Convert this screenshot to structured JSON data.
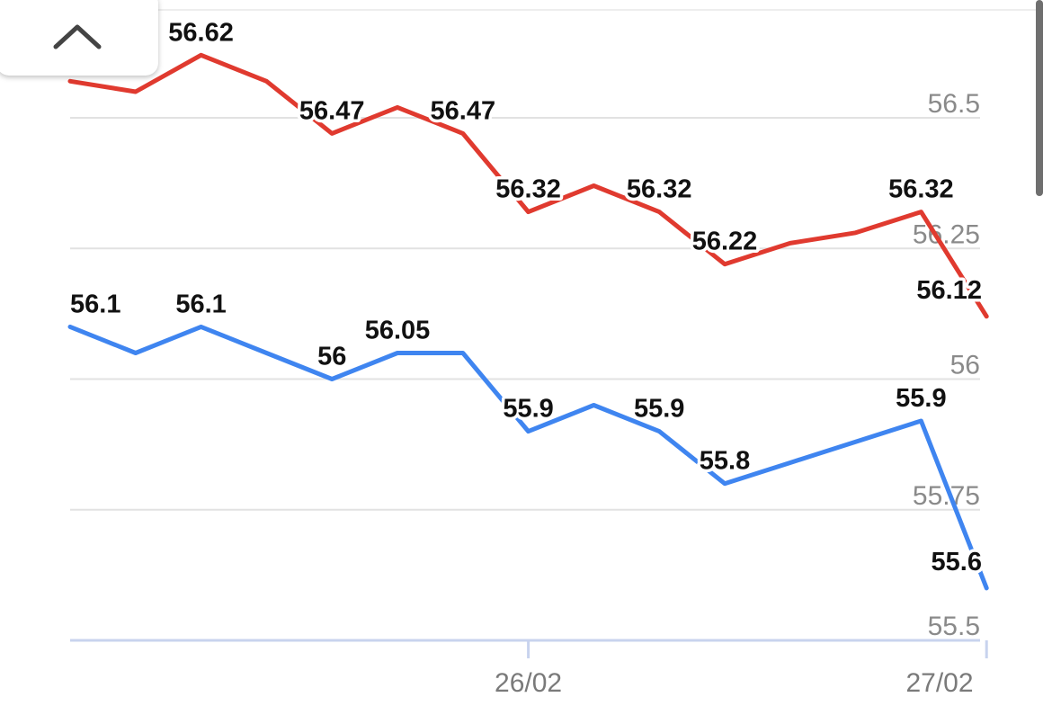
{
  "chart_data": {
    "type": "line",
    "x": [
      "",
      "",
      "",
      "",
      "",
      "",
      "",
      "26/02",
      "",
      "",
      "",
      "",
      "",
      "",
      "27/02"
    ],
    "x_ticks": [
      "26/02",
      "27/02"
    ],
    "yticks": [
      "56.5",
      "56.25",
      "56",
      "55.75",
      "55.5"
    ],
    "ylim": [
      55.5,
      56.5
    ],
    "grid": true,
    "series": [
      {
        "color": "#e03a2f",
        "values": [
          56.57,
          56.55,
          56.62,
          56.57,
          56.47,
          56.52,
          56.47,
          56.32,
          56.37,
          56.32,
          56.22,
          56.26,
          56.28,
          56.32,
          56.12
        ],
        "labels": [
          "",
          "",
          "56.62",
          "",
          "56.47",
          "",
          "56.47",
          "56.32",
          "",
          "56.32",
          "56.22",
          "",
          "",
          "56.32",
          "56.12"
        ]
      },
      {
        "color": "#3f85f0",
        "values": [
          56.1,
          56.05,
          56.1,
          56.05,
          56,
          56.05,
          56.05,
          55.9,
          55.95,
          55.9,
          55.8,
          55.84,
          55.88,
          55.92,
          55.6
        ],
        "labels": [
          "56.1",
          "",
          "56.1",
          "",
          "56",
          "56.05",
          "",
          "55.9",
          "",
          "55.9",
          "55.8",
          "",
          "",
          "55.9",
          "55.6"
        ]
      }
    ]
  },
  "controls": {
    "collapse_icon": "chevron-up-icon"
  }
}
